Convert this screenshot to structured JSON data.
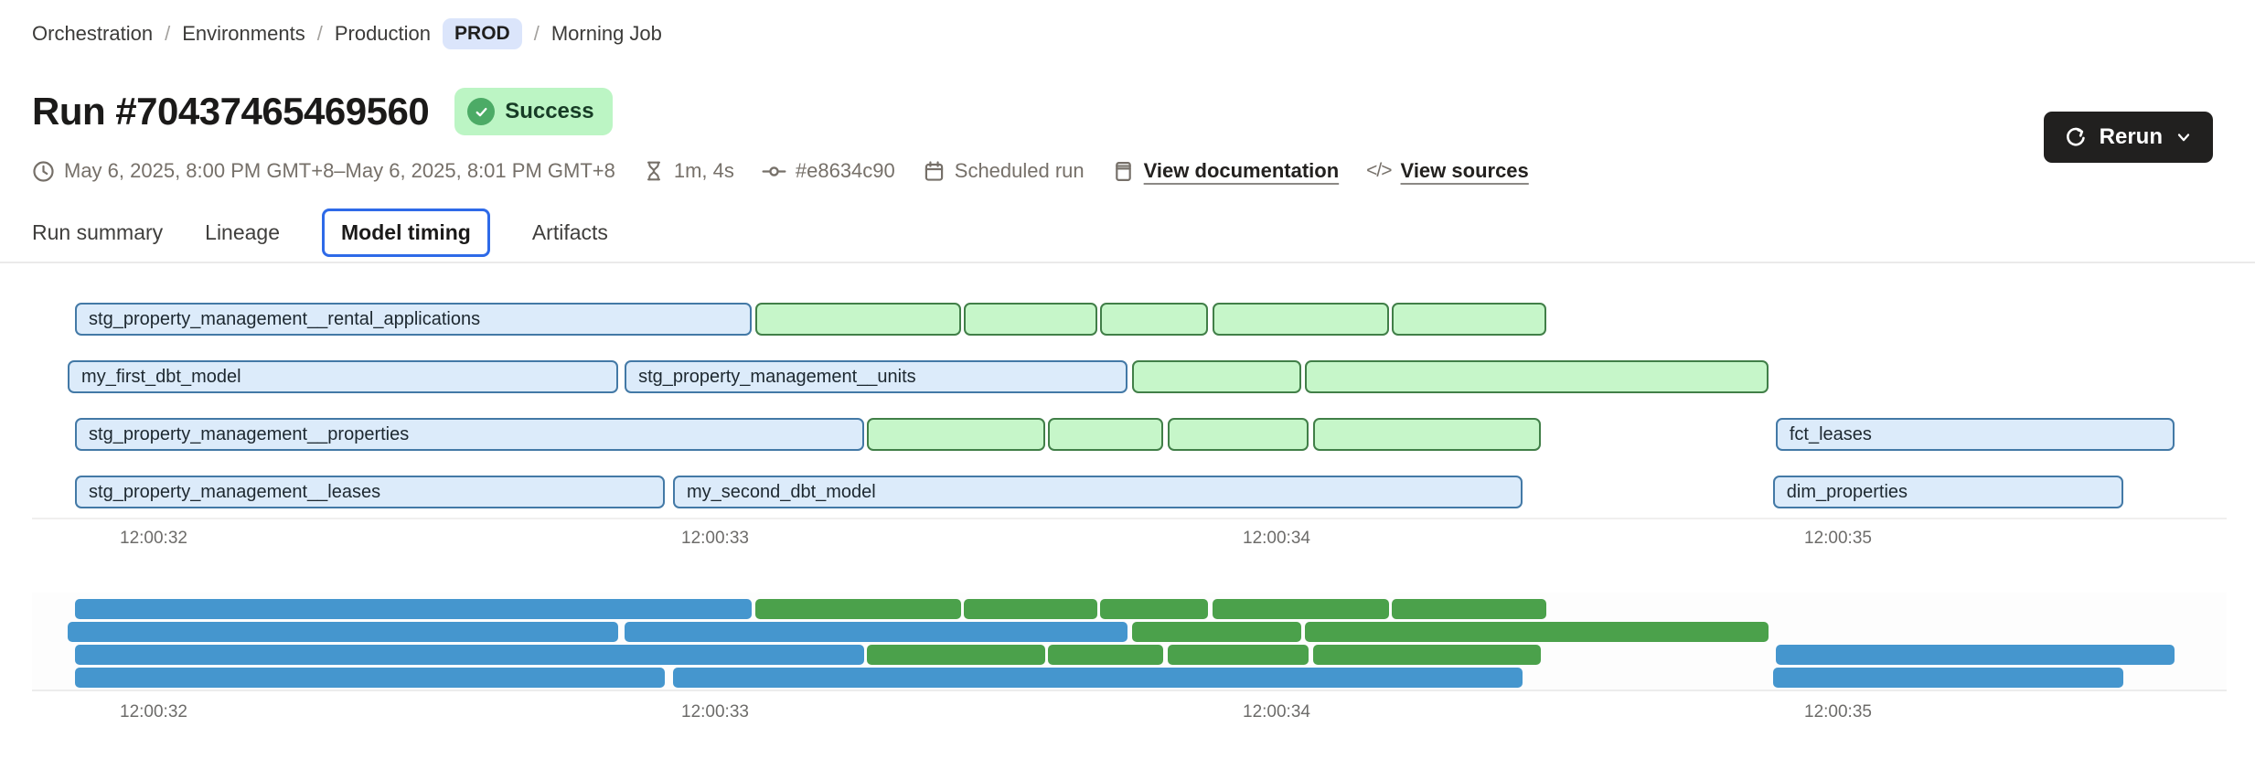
{
  "breadcrumb": {
    "separator": "/",
    "items": [
      "Orchestration",
      "Environments",
      "Production"
    ],
    "env_badge": "PROD",
    "last": "Morning Job"
  },
  "header": {
    "title": "Run #70437465469560",
    "status": "Success"
  },
  "meta": {
    "date_range": "May 6, 2025, 8:00 PM GMT+8–May 6, 2025, 8:01 PM GMT+8",
    "duration": "1m, 4s",
    "commit": "#e8634c90",
    "trigger": "Scheduled run",
    "doc_link": "View documentation",
    "sources_link": "View sources",
    "code_icon_glyph": "</>"
  },
  "rerun": {
    "label": "Rerun"
  },
  "tabs": [
    {
      "label": "Run summary",
      "active": false
    },
    {
      "label": "Lineage",
      "active": false
    },
    {
      "label": "Model timing",
      "active": true
    },
    {
      "label": "Artifacts",
      "active": false
    }
  ],
  "colors": {
    "accent_blue": "#2e6ae8",
    "prod_badge_bg": "#dbe5fb",
    "success_bg": "#bcf5c4",
    "success_check": "#4cab66",
    "bar_blue_fill": "#dcebfa",
    "bar_blue_border": "#4379a6",
    "bar_green_fill": "#c6f6c9",
    "bar_green_border": "#417f48",
    "mini_blue": "#4596ce",
    "mini_green": "#4ba14b",
    "rerun_bg": "#21201f"
  },
  "chart_data": {
    "type": "gantt",
    "x_ticks": [
      {
        "label": "12:00:32",
        "t": 32
      },
      {
        "label": "12:00:33",
        "t": 33
      },
      {
        "label": "12:00:34",
        "t": 34
      },
      {
        "label": "12:00:35",
        "t": 35
      }
    ],
    "time_axis_note": "t = seconds after 12:00:00",
    "rows": [
      [
        {
          "label": "stg_property_management__rental_applications",
          "color": "blue",
          "start": 31.86,
          "end": 33.065
        },
        {
          "label": "",
          "color": "green",
          "start": 33.072,
          "end": 33.438
        },
        {
          "label": "",
          "color": "green",
          "start": 33.443,
          "end": 33.681
        },
        {
          "label": "",
          "color": "green",
          "start": 33.686,
          "end": 33.878
        },
        {
          "label": "",
          "color": "green",
          "start": 33.886,
          "end": 34.2
        },
        {
          "label": "",
          "color": "green",
          "start": 34.205,
          "end": 34.48
        }
      ],
      [
        {
          "label": "my_first_dbt_model",
          "color": "blue",
          "start": 31.847,
          "end": 32.827
        },
        {
          "label": "stg_property_management__units",
          "color": "blue",
          "start": 32.839,
          "end": 33.734
        },
        {
          "label": "",
          "color": "green",
          "start": 33.743,
          "end": 34.044
        },
        {
          "label": "",
          "color": "green",
          "start": 34.05,
          "end": 34.876
        }
      ],
      [
        {
          "label": "stg_property_management__properties",
          "color": "blue",
          "start": 31.86,
          "end": 33.265
        },
        {
          "label": "",
          "color": "green",
          "start": 33.27,
          "end": 33.588
        },
        {
          "label": "",
          "color": "green",
          "start": 33.593,
          "end": 33.798
        },
        {
          "label": "",
          "color": "green",
          "start": 33.806,
          "end": 34.057
        },
        {
          "label": "",
          "color": "green",
          "start": 34.065,
          "end": 34.471
        },
        {
          "label": "fct_leases",
          "color": "blue",
          "start": 34.889,
          "end": 35.599
        }
      ],
      [
        {
          "label": "stg_property_management__leases",
          "color": "blue",
          "start": 31.86,
          "end": 32.91
        },
        {
          "label": "my_second_dbt_model",
          "color": "blue",
          "start": 32.925,
          "end": 34.438
        },
        {
          "label": "dim_properties",
          "color": "blue",
          "start": 34.884,
          "end": 35.508
        }
      ]
    ]
  }
}
